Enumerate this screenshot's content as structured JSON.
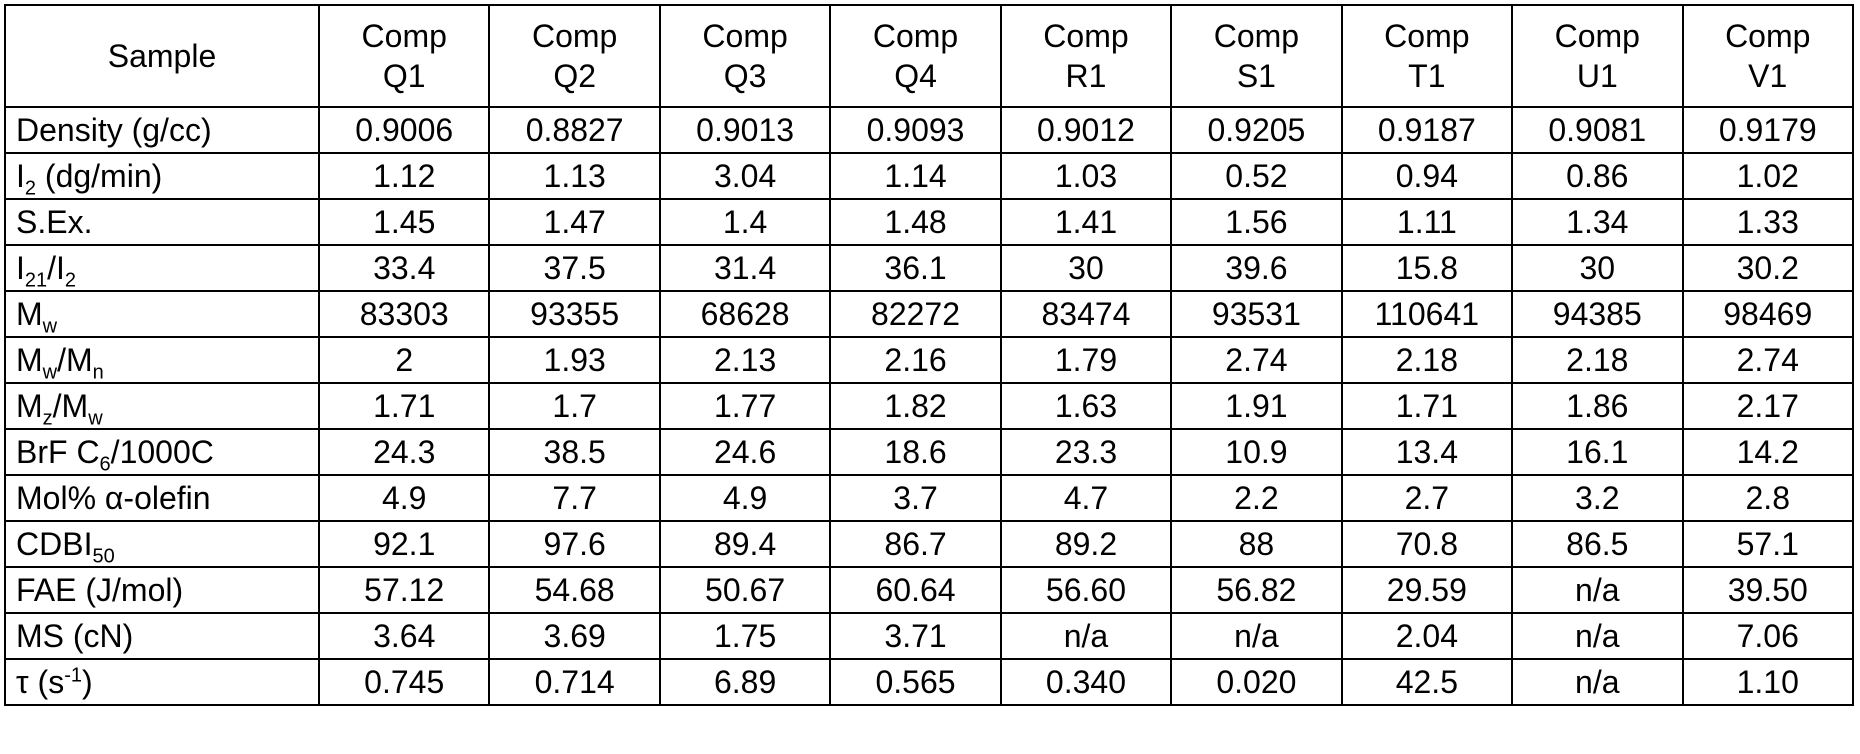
{
  "table": {
    "corner": "Sample",
    "columns": [
      [
        "Comp",
        "Q1"
      ],
      [
        "Comp",
        "Q2"
      ],
      [
        "Comp",
        "Q3"
      ],
      [
        "Comp",
        "Q4"
      ],
      [
        "Comp",
        "R1"
      ],
      [
        "Comp",
        "S1"
      ],
      [
        "Comp",
        "T1"
      ],
      [
        "Comp",
        "U1"
      ],
      [
        "Comp",
        "V1"
      ]
    ],
    "rows": [
      {
        "label": [
          {
            "text": "Density (g/cc)"
          }
        ],
        "cells": [
          "0.9006",
          "0.8827",
          "0.9013",
          "0.9093",
          "0.9012",
          "0.9205",
          "0.9187",
          "0.9081",
          "0.9179"
        ]
      },
      {
        "label": [
          {
            "text": "I"
          },
          {
            "text": "2",
            "style": "sub"
          },
          {
            "text": " (dg/min)"
          }
        ],
        "cells": [
          "1.12",
          "1.13",
          "3.04",
          "1.14",
          "1.03",
          "0.52",
          "0.94",
          "0.86",
          "1.02"
        ]
      },
      {
        "label": [
          {
            "text": "S.Ex."
          }
        ],
        "cells": [
          "1.45",
          "1.47",
          "1.4",
          "1.48",
          "1.41",
          "1.56",
          "1.11",
          "1.34",
          "1.33"
        ]
      },
      {
        "label": [
          {
            "text": "I"
          },
          {
            "text": "21",
            "style": "sub"
          },
          {
            "text": "/I"
          },
          {
            "text": "2",
            "style": "sub"
          }
        ],
        "cells": [
          "33.4",
          "37.5",
          "31.4",
          "36.1",
          "30",
          "39.6",
          "15.8",
          "30",
          "30.2"
        ]
      },
      {
        "label": [
          {
            "text": "M"
          },
          {
            "text": "w",
            "style": "sub"
          }
        ],
        "cells": [
          "83303",
          "93355",
          "68628",
          "82272",
          "83474",
          "93531",
          "110641",
          "94385",
          "98469"
        ]
      },
      {
        "label": [
          {
            "text": "M"
          },
          {
            "text": "w",
            "style": "sub"
          },
          {
            "text": "/M"
          },
          {
            "text": "n",
            "style": "sub"
          }
        ],
        "cells": [
          "2",
          "1.93",
          "2.13",
          "2.16",
          "1.79",
          "2.74",
          "2.18",
          "2.18",
          "2.74"
        ]
      },
      {
        "label": [
          {
            "text": "M"
          },
          {
            "text": "z",
            "style": "sub"
          },
          {
            "text": "/M"
          },
          {
            "text": "w",
            "style": "sub"
          }
        ],
        "cells": [
          "1.71",
          "1.7",
          "1.77",
          "1.82",
          "1.63",
          "1.91",
          "1.71",
          "1.86",
          "2.17"
        ]
      },
      {
        "label": [
          {
            "text": "BrF C"
          },
          {
            "text": "6",
            "style": "sub"
          },
          {
            "text": "/1000C"
          }
        ],
        "cells": [
          "24.3",
          "38.5",
          "24.6",
          "18.6",
          "23.3",
          "10.9",
          "13.4",
          "16.1",
          "14.2"
        ]
      },
      {
        "label": [
          {
            "text": "Mol% α-olefin"
          }
        ],
        "cells": [
          "4.9",
          "7.7",
          "4.9",
          "3.7",
          "4.7",
          "2.2",
          "2.7",
          "3.2",
          "2.8"
        ]
      },
      {
        "label": [
          {
            "text": "CDBI"
          },
          {
            "text": "50",
            "style": "sub"
          }
        ],
        "cells": [
          "92.1",
          "97.6",
          "89.4",
          "86.7",
          "89.2",
          "88",
          "70.8",
          "86.5",
          "57.1"
        ]
      },
      {
        "label": [
          {
            "text": "FAE (J/mol)"
          }
        ],
        "cells": [
          "57.12",
          "54.68",
          "50.67",
          "60.64",
          "56.60",
          "56.82",
          "29.59",
          "n/a",
          "39.50"
        ]
      },
      {
        "label": [
          {
            "text": "MS (cN)"
          }
        ],
        "cells": [
          "3.64",
          "3.69",
          "1.75",
          "3.71",
          "n/a",
          "n/a",
          "2.04",
          "n/a",
          "7.06"
        ]
      },
      {
        "label": [
          {
            "text": "τ (s"
          },
          {
            "text": "-1",
            "style": "sup"
          },
          {
            "text": ")"
          }
        ],
        "cells": [
          "0.745",
          "0.714",
          "6.89",
          "0.565",
          "0.340",
          "0.020",
          "42.5",
          "n/a",
          "1.10"
        ]
      }
    ]
  }
}
